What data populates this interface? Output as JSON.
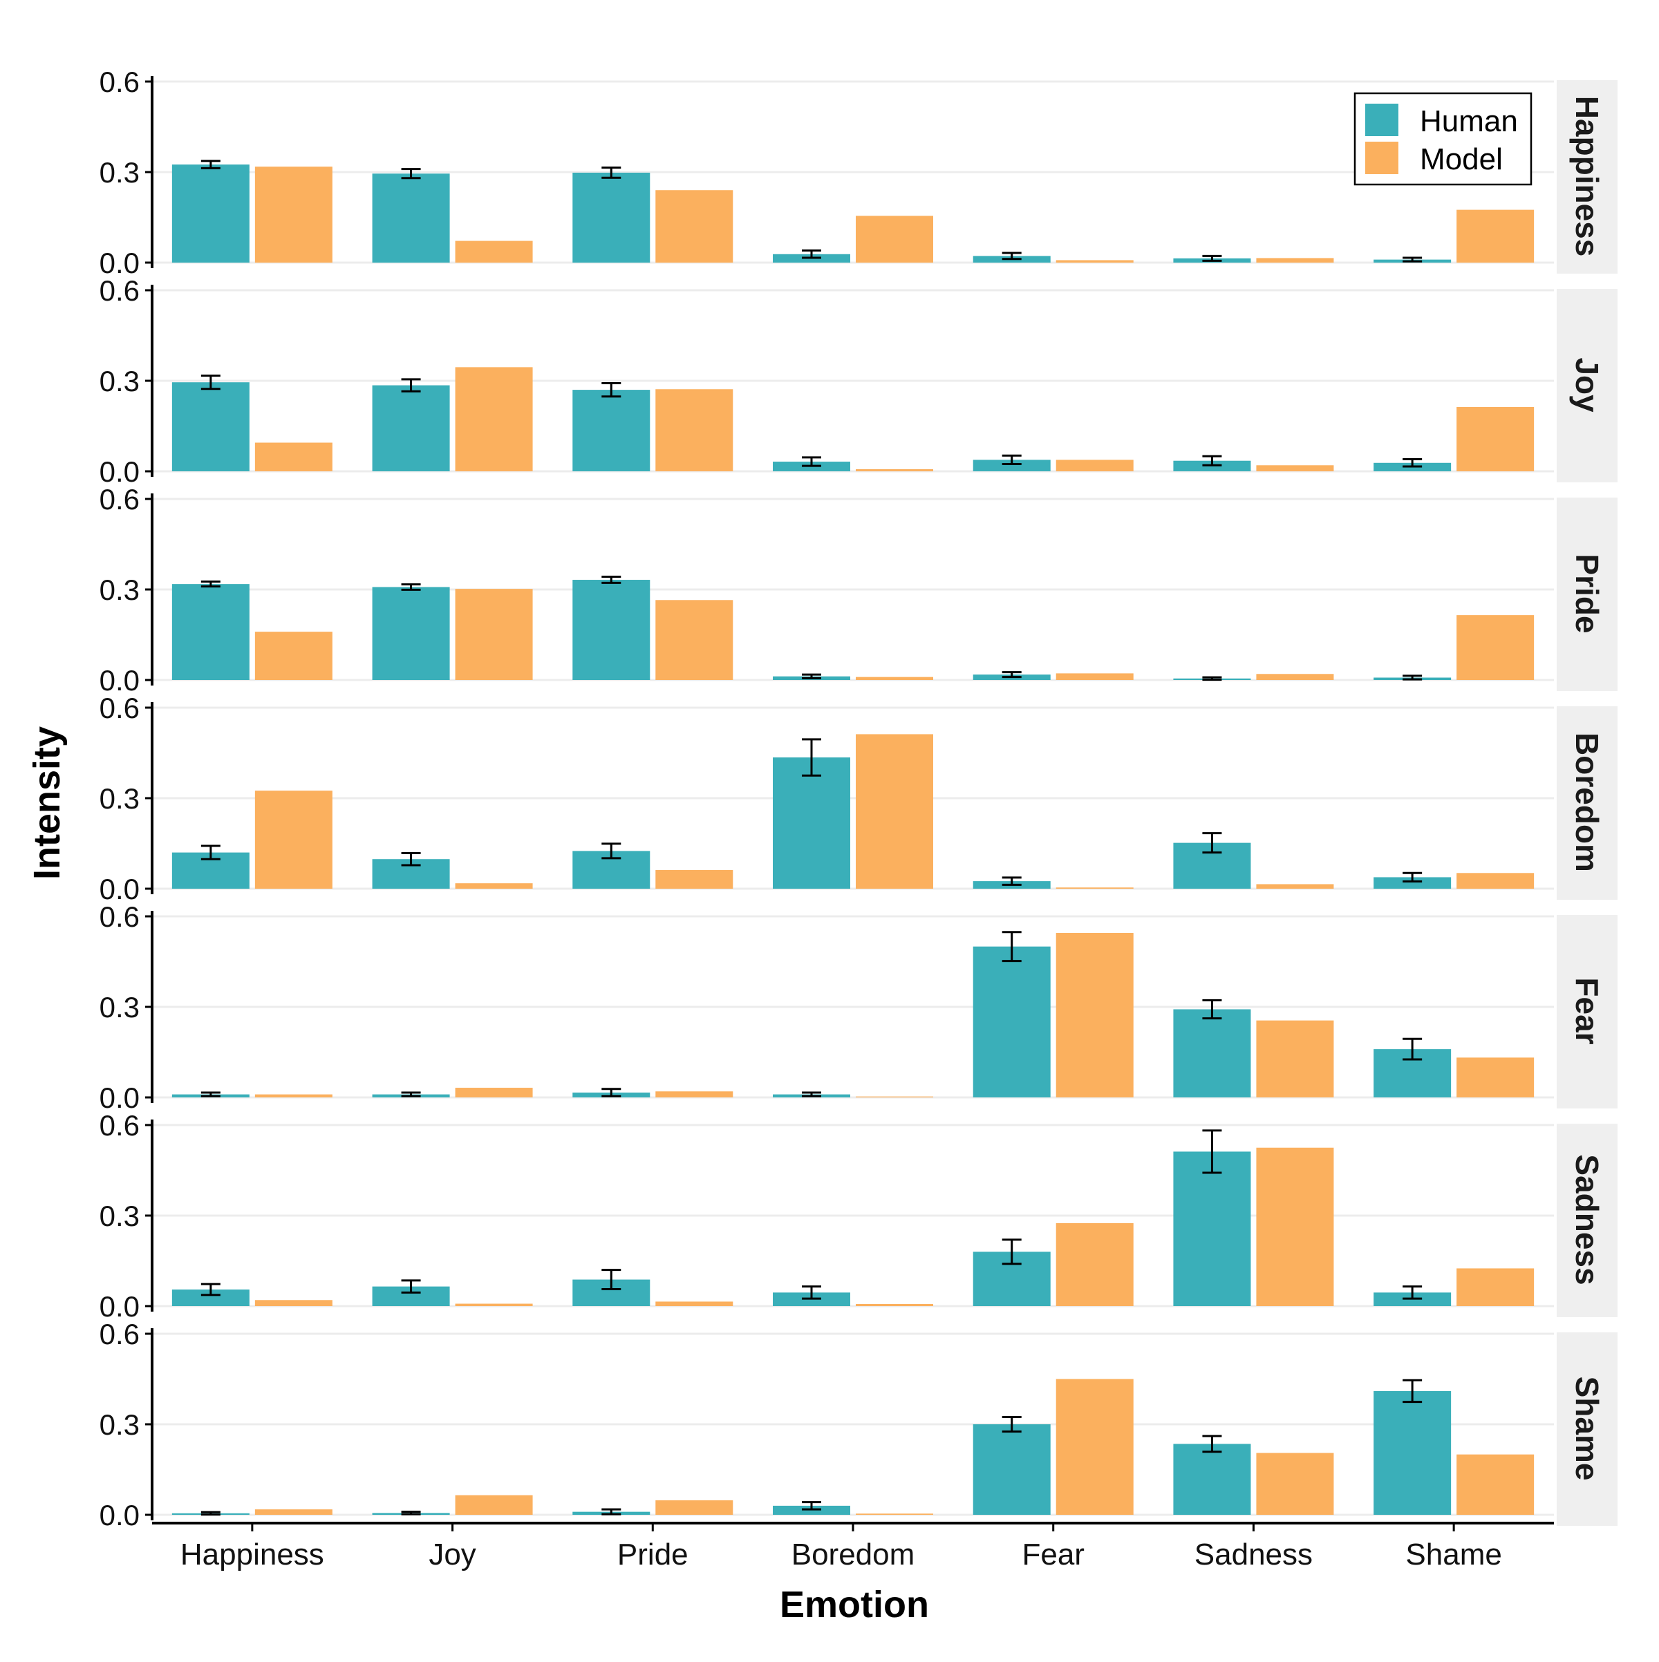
{
  "chart_data": {
    "type": "bar",
    "facet_label_position": "right",
    "categories": [
      "Happiness",
      "Joy",
      "Pride",
      "Boredom",
      "Fear",
      "Sadness",
      "Shame"
    ],
    "xlabel": "Emotion",
    "ylabel": "Intensity",
    "ylim": [
      0,
      0.6
    ],
    "yticks": [
      "0.0",
      "0.3",
      "0.6"
    ],
    "legend": {
      "position": "top-right",
      "entries": [
        {
          "name": "Human",
          "color": "#3aafb9"
        },
        {
          "name": "Model",
          "color": "#fbb05e"
        }
      ]
    },
    "panels": [
      {
        "title": "Happiness",
        "human": [
          0.325,
          0.295,
          0.298,
          0.028,
          0.022,
          0.014,
          0.01
        ],
        "human_err": [
          0.012,
          0.015,
          0.017,
          0.012,
          0.01,
          0.008,
          0.006
        ],
        "model": [
          0.318,
          0.072,
          0.24,
          0.155,
          0.008,
          0.015,
          0.175
        ]
      },
      {
        "title": "Joy",
        "human": [
          0.295,
          0.285,
          0.27,
          0.032,
          0.038,
          0.035,
          0.028
        ],
        "human_err": [
          0.022,
          0.02,
          0.022,
          0.014,
          0.014,
          0.015,
          0.012
        ],
        "model": [
          0.095,
          0.345,
          0.272,
          0.007,
          0.038,
          0.02,
          0.213
        ]
      },
      {
        "title": "Pride",
        "human": [
          0.318,
          0.308,
          0.332,
          0.012,
          0.018,
          0.005,
          0.008
        ],
        "human_err": [
          0.008,
          0.009,
          0.01,
          0.006,
          0.008,
          0.004,
          0.006
        ],
        "model": [
          0.16,
          0.302,
          0.265,
          0.01,
          0.022,
          0.02,
          0.215
        ]
      },
      {
        "title": "Boredom",
        "human": [
          0.12,
          0.098,
          0.125,
          0.435,
          0.025,
          0.152,
          0.038
        ],
        "human_err": [
          0.022,
          0.02,
          0.024,
          0.06,
          0.012,
          0.032,
          0.014
        ],
        "model": [
          0.325,
          0.018,
          0.062,
          0.512,
          0.004,
          0.015,
          0.052
        ]
      },
      {
        "title": "Fear",
        "human": [
          0.01,
          0.01,
          0.016,
          0.01,
          0.5,
          0.292,
          0.16
        ],
        "human_err": [
          0.006,
          0.006,
          0.012,
          0.006,
          0.048,
          0.03,
          0.034
        ],
        "model": [
          0.01,
          0.032,
          0.02,
          0.003,
          0.545,
          0.255,
          0.132
        ]
      },
      {
        "title": "Sadness",
        "human": [
          0.055,
          0.065,
          0.088,
          0.045,
          0.18,
          0.512,
          0.045
        ],
        "human_err": [
          0.018,
          0.02,
          0.032,
          0.02,
          0.04,
          0.07,
          0.02
        ],
        "model": [
          0.02,
          0.008,
          0.015,
          0.007,
          0.275,
          0.525,
          0.125
        ]
      },
      {
        "title": "Shame",
        "human": [
          0.005,
          0.006,
          0.01,
          0.03,
          0.3,
          0.235,
          0.41
        ],
        "human_err": [
          0.004,
          0.004,
          0.008,
          0.012,
          0.024,
          0.026,
          0.036
        ],
        "model": [
          0.018,
          0.065,
          0.048,
          0.004,
          0.45,
          0.205,
          0.2
        ]
      }
    ]
  }
}
